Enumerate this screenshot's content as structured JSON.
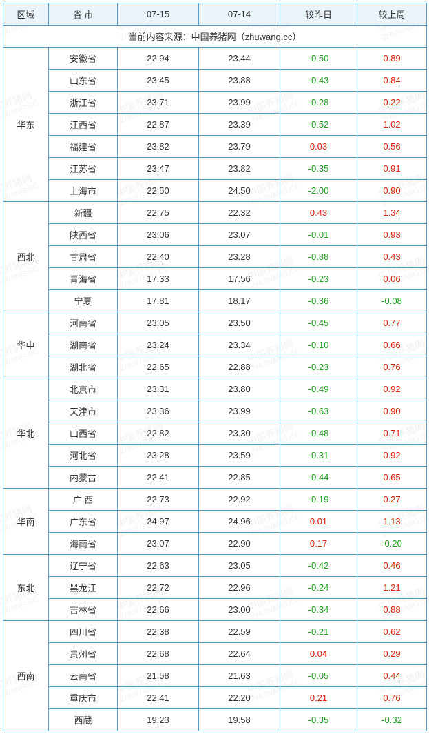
{
  "header": {
    "region": "区域",
    "province": "省 市",
    "date1": "07-15",
    "date2": "07-14",
    "diff_day": "较昨日",
    "diff_week": "较上周"
  },
  "source_line": "当前内容来源：中国养猪网（zhuwang.cc）",
  "watermark": {
    "line1": "中国养猪网",
    "line2": "ZHUWANG.CC"
  },
  "colors": {
    "border": "#539dcc",
    "header_bg": "#eaf4fb",
    "text": "#333333",
    "positive": "#d81e06",
    "negative": "#1a9e1a",
    "background": "#ffffff"
  },
  "regions": [
    {
      "name": "华东",
      "rows": [
        {
          "prov": "安徽省",
          "d1": "22.94",
          "d2": "23.44",
          "dd": "-0.50",
          "dw": "0.89"
        },
        {
          "prov": "山东省",
          "d1": "23.45",
          "d2": "23.88",
          "dd": "-0.43",
          "dw": "0.84"
        },
        {
          "prov": "浙江省",
          "d1": "23.71",
          "d2": "23.99",
          "dd": "-0.28",
          "dw": "0.22"
        },
        {
          "prov": "江西省",
          "d1": "22.87",
          "d2": "23.39",
          "dd": "-0.52",
          "dw": "1.02"
        },
        {
          "prov": "福建省",
          "d1": "23.82",
          "d2": "23.79",
          "dd": "0.03",
          "dw": "0.56"
        },
        {
          "prov": "江苏省",
          "d1": "23.47",
          "d2": "23.82",
          "dd": "-0.35",
          "dw": "0.91"
        },
        {
          "prov": "上海市",
          "d1": "22.50",
          "d2": "24.50",
          "dd": "-2.00",
          "dw": "0.90"
        }
      ]
    },
    {
      "name": "西北",
      "rows": [
        {
          "prov": "新疆",
          "d1": "22.75",
          "d2": "22.32",
          "dd": "0.43",
          "dw": "1.34"
        },
        {
          "prov": "陕西省",
          "d1": "23.06",
          "d2": "23.07",
          "dd": "-0.01",
          "dw": "0.93"
        },
        {
          "prov": "甘肃省",
          "d1": "22.40",
          "d2": "23.28",
          "dd": "-0.88",
          "dw": "0.43"
        },
        {
          "prov": "青海省",
          "d1": "17.33",
          "d2": "17.56",
          "dd": "-0.23",
          "dw": "0.06"
        },
        {
          "prov": "宁夏",
          "d1": "17.81",
          "d2": "18.17",
          "dd": "-0.36",
          "dw": "-0.08"
        }
      ]
    },
    {
      "name": "华中",
      "rows": [
        {
          "prov": "河南省",
          "d1": "23.05",
          "d2": "23.50",
          "dd": "-0.45",
          "dw": "0.77"
        },
        {
          "prov": "湖南省",
          "d1": "23.24",
          "d2": "23.34",
          "dd": "-0.10",
          "dw": "0.66"
        },
        {
          "prov": "湖北省",
          "d1": "22.65",
          "d2": "22.88",
          "dd": "-0.23",
          "dw": "0.76"
        }
      ]
    },
    {
      "name": "华北",
      "rows": [
        {
          "prov": "北京市",
          "d1": "23.31",
          "d2": "23.80",
          "dd": "-0.49",
          "dw": "0.92"
        },
        {
          "prov": "天津市",
          "d1": "23.36",
          "d2": "23.99",
          "dd": "-0.63",
          "dw": "0.90"
        },
        {
          "prov": "山西省",
          "d1": "22.82",
          "d2": "23.30",
          "dd": "-0.48",
          "dw": "0.71"
        },
        {
          "prov": "河北省",
          "d1": "23.28",
          "d2": "23.59",
          "dd": "-0.31",
          "dw": "0.92"
        },
        {
          "prov": "内蒙古",
          "d1": "22.41",
          "d2": "22.85",
          "dd": "-0.44",
          "dw": "0.65"
        }
      ]
    },
    {
      "name": "华南",
      "rows": [
        {
          "prov": "广 西",
          "d1": "22.73",
          "d2": "22.92",
          "dd": "-0.19",
          "dw": "0.27"
        },
        {
          "prov": "广东省",
          "d1": "24.97",
          "d2": "24.96",
          "dd": "0.01",
          "dw": "1.13"
        },
        {
          "prov": "海南省",
          "d1": "23.07",
          "d2": "22.90",
          "dd": "0.17",
          "dw": "-0.20"
        }
      ]
    },
    {
      "name": "东北",
      "rows": [
        {
          "prov": "辽宁省",
          "d1": "22.63",
          "d2": "23.05",
          "dd": "-0.42",
          "dw": "0.46"
        },
        {
          "prov": "黑龙江",
          "d1": "22.72",
          "d2": "22.96",
          "dd": "-0.24",
          "dw": "1.21"
        },
        {
          "prov": "吉林省",
          "d1": "22.66",
          "d2": "23.00",
          "dd": "-0.34",
          "dw": "0.88"
        }
      ]
    },
    {
      "name": "西南",
      "rows": [
        {
          "prov": "四川省",
          "d1": "22.38",
          "d2": "22.59",
          "dd": "-0.21",
          "dw": "0.62"
        },
        {
          "prov": "贵州省",
          "d1": "22.68",
          "d2": "22.64",
          "dd": "0.04",
          "dw": "0.29"
        },
        {
          "prov": "云南省",
          "d1": "21.58",
          "d2": "21.63",
          "dd": "-0.05",
          "dw": "0.44"
        },
        {
          "prov": "重庆市",
          "d1": "22.41",
          "d2": "22.20",
          "dd": "0.21",
          "dw": "0.76"
        },
        {
          "prov": "西藏",
          "d1": "19.23",
          "d2": "19.58",
          "dd": "-0.35",
          "dw": "-0.32"
        }
      ]
    }
  ]
}
